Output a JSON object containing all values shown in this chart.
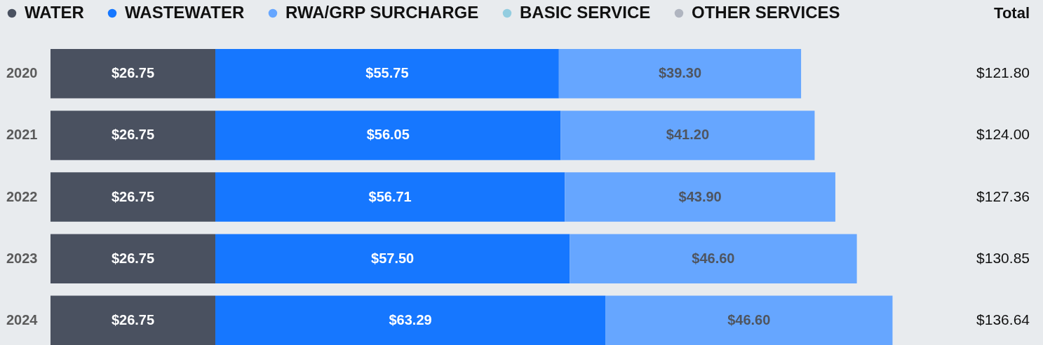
{
  "chart_data": {
    "type": "bar",
    "orientation": "horizontal",
    "stacked": true,
    "categories": [
      "2020",
      "2021",
      "2022",
      "2023",
      "2024"
    ],
    "series": [
      {
        "name": "WATER",
        "color": "#4a5160",
        "values": [
          26.75,
          26.75,
          26.75,
          26.75,
          26.75
        ],
        "value_labels": [
          "$26.75",
          "$26.75",
          "$26.75",
          "$26.75",
          "$26.75"
        ]
      },
      {
        "name": "WASTEWATER",
        "color": "#1677ff",
        "values": [
          55.75,
          56.05,
          56.71,
          57.5,
          63.29
        ],
        "value_labels": [
          "$55.75",
          "$56.05",
          "$56.71",
          "$57.50",
          "$63.29"
        ]
      },
      {
        "name": "RWA/GRP SURCHARGE",
        "color": "#66a6ff",
        "values": [
          39.3,
          41.2,
          43.9,
          46.6,
          46.6
        ],
        "value_labels": [
          "$39.30",
          "$41.20",
          "$43.90",
          "$46.60",
          "$46.60"
        ]
      },
      {
        "name": "BASIC SERVICE",
        "color": "#93cde0",
        "values": [
          null,
          null,
          null,
          null,
          null
        ]
      },
      {
        "name": "OTHER SERVICES",
        "color": "#b0b5c0",
        "values": [
          null,
          null,
          null,
          null,
          null
        ]
      }
    ],
    "annotations": [
      "Total",
      "$121.80",
      "$124.00",
      "$127.36",
      "$130.85",
      "$136.64"
    ],
    "legend": "top",
    "tick_labels": "y"
  }
}
